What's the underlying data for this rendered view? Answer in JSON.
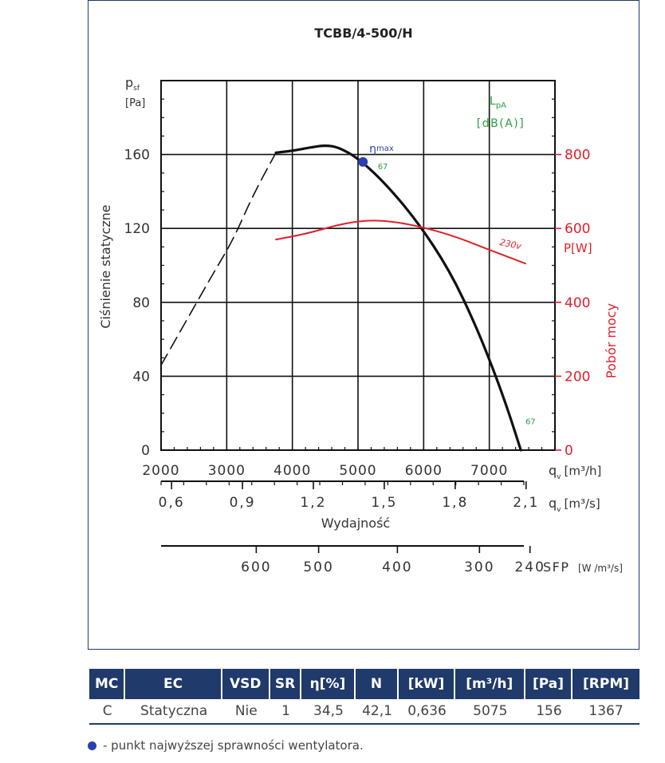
{
  "chart_data": {
    "type": "line",
    "title": "TCBB/4-500/H",
    "ylabel": "Ciśnienie statyczne",
    "yunit_main": "p",
    "yunit_sub": "sf",
    "yunit_bracket": "[Pa]",
    "y2label": "Pobór mocy",
    "y2unit": "P[W]",
    "lpa_main": "L",
    "lpa_sub": "pA",
    "lpa_unit": "[dB(A)]",
    "xlabel": "Wydajność",
    "x_unit1_main": "q",
    "x_unit1_sub": "v",
    "x_unit1_bracket": "[m³/h]",
    "x_unit2_main": "q",
    "x_unit2_sub": "v",
    "x_unit2_bracket": "[m³/s]",
    "sfp_label": "SFP",
    "sfp_unit": "[W /m³/s]",
    "xlim": [
      2000,
      8000
    ],
    "ylim": [
      0,
      200
    ],
    "y2lim": [
      0,
      1000
    ],
    "x_ticks": [
      2000,
      3000,
      4000,
      5000,
      6000,
      7000
    ],
    "y_ticks": [
      0,
      40,
      80,
      120,
      160
    ],
    "y2_ticks": [
      0,
      200,
      400,
      600,
      800
    ],
    "x2_ticks": [
      {
        "label": "0,6",
        "x": 2160
      },
      {
        "label": "0,9",
        "x": 3240
      },
      {
        "label": "1,2",
        "x": 4320
      },
      {
        "label": "1,5",
        "x": 5400
      },
      {
        "label": "1,8",
        "x": 6480
      },
      {
        "label": "2,1",
        "x": 7560
      }
    ],
    "sfp_ticks": [
      {
        "label": "600",
        "x": 3450
      },
      {
        "label": "500",
        "x": 4400
      },
      {
        "label": "400",
        "x": 5600
      },
      {
        "label": "300",
        "x": 6850
      },
      {
        "label": "240",
        "x": 7620
      }
    ],
    "series": [
      {
        "name": "",
        "role": "pressure_dashed",
        "color": "#111111",
        "x": [
          2000,
          2400,
          2800,
          3100,
          3400,
          3750
        ],
        "y": [
          46,
          71,
          96,
          114,
          138,
          161
        ]
      },
      {
        "name": "",
        "role": "pressure",
        "color": "#111111",
        "x": [
          3750,
          4000,
          4300,
          4500,
          4700,
          5000,
          5400,
          5900,
          6400,
          6800,
          7100,
          7300,
          7480
        ],
        "y": [
          161,
          162,
          164,
          165,
          164,
          158,
          145,
          124,
          97,
          67,
          40,
          20,
          0
        ]
      },
      {
        "name": "230v",
        "role": "power",
        "color": "#e0202a",
        "x": [
          3750,
          4200,
          4700,
          5100,
          5500,
          6000,
          6500,
          7000,
          7550
        ],
        "y": [
          570,
          585,
          610,
          622,
          620,
          603,
          577,
          542,
          505
        ]
      }
    ],
    "eta_label": "η",
    "eta_sub": "max",
    "eta_point": {
      "x": 5075,
      "y": 156
    },
    "lpa_annotations": [
      {
        "label": "67",
        "x": 5300,
        "y": 152
      },
      {
        "label": "67",
        "x": 7550,
        "y": 14
      }
    ]
  },
  "table": {
    "headers": [
      "MC",
      "EC",
      "VSD",
      "SR",
      "η[%]",
      "N",
      "[kW]",
      "[m³/h]",
      "[Pa]",
      "[RPM]"
    ],
    "row": [
      "C",
      "Statyczna",
      "Nie",
      "1",
      "34,5",
      "42,1",
      "0,636",
      "5075",
      "156",
      "1367"
    ]
  },
  "note": "- punkt najwyższej sprawności wentylatora.",
  "colors": {
    "navy": "#1f3a6b",
    "power": "#e0202a",
    "lpa": "#2aa040",
    "eta": "#2a3fb0"
  }
}
